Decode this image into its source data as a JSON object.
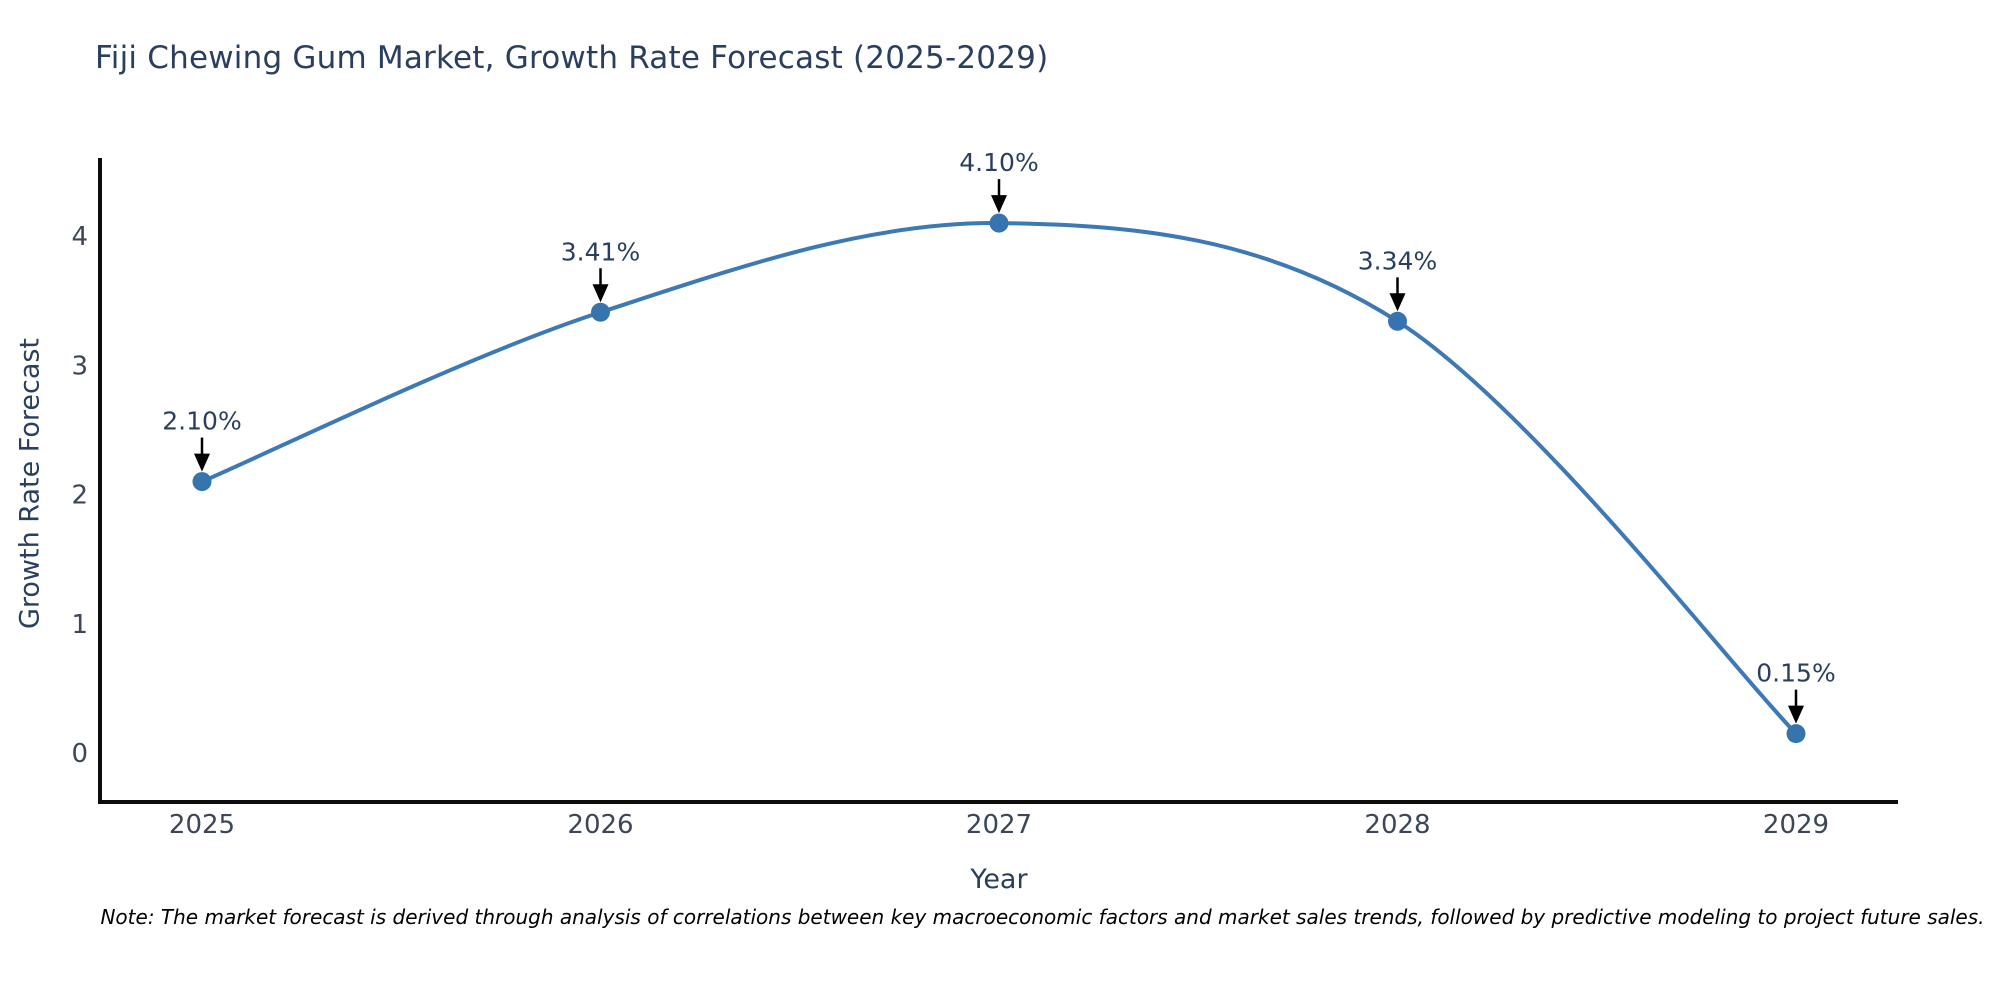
{
  "title": "Fiji Chewing Gum Market, Growth Rate Forecast (2025-2029)",
  "footnote": "Note: The market forecast is derived through analysis of correlations between key macroeconomic factors and market sales trends, followed by predictive modeling to project future sales.",
  "chart_data": {
    "type": "line",
    "title": "Fiji Chewing Gum Market, Growth Rate Forecast (2025-2029)",
    "xlabel": "Year",
    "ylabel": "Growth Rate Forecast",
    "categories": [
      "2025",
      "2026",
      "2027",
      "2028",
      "2029"
    ],
    "values": [
      2.1,
      3.41,
      4.1,
      3.34,
      0.15
    ],
    "point_labels": [
      "2.10%",
      "3.41%",
      "4.10%",
      "3.34%",
      "0.15%"
    ],
    "yticks": [
      0,
      1,
      2,
      3,
      4
    ],
    "ylim": [
      -0.38,
      4.6
    ],
    "line_shape": "spline",
    "grid": "off",
    "legend": "none",
    "colors": {
      "line": "#3d79b5",
      "marker": "#3674b0",
      "axis_spine": "#0d0d0d",
      "text": "#2a3f5f",
      "tick_text": "#3b4656",
      "annotation_arrow": "#000000"
    }
  }
}
